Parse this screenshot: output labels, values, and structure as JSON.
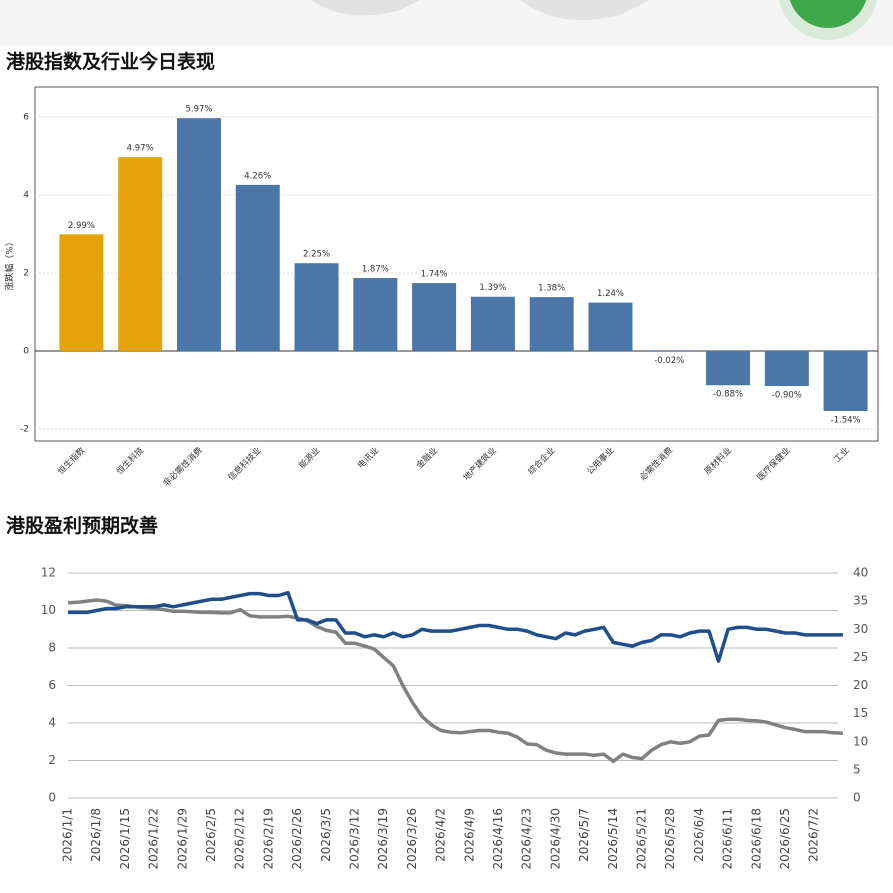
{
  "chart_data": [
    {
      "type": "bar",
      "title": "港股指数及行业今日表现",
      "ylabel": "涨跌幅（%）",
      "categories": [
        "恒生指数",
        "恒生科技",
        "非必需性消费",
        "信息科技业",
        "能源业",
        "电讯业",
        "金融业",
        "地产建筑业",
        "综合企业",
        "公用事业",
        "必需性消费",
        "原材料业",
        "医疗保健业",
        "工业"
      ],
      "values": [
        2.99,
        4.97,
        5.97,
        4.26,
        2.25,
        1.87,
        1.74,
        1.39,
        1.38,
        1.24,
        -0.02,
        -0.88,
        -0.9,
        -1.54
      ],
      "value_labels": [
        "2.99%",
        "4.97%",
        "5.97%",
        "4.26%",
        "2.25%",
        "1.87%",
        "1.74%",
        "1.39%",
        "1.38%",
        "1.24%",
        "-0.02%",
        "-0.88%",
        "-0.90%",
        "-1.54%"
      ],
      "colors": [
        "#e6a20a",
        "#e6a20a",
        "#4a76a8",
        "#4a76a8",
        "#4a76a8",
        "#4a76a8",
        "#4a76a8",
        "#4a76a8",
        "#4a76a8",
        "#4a76a8",
        "#4a76a8",
        "#4a76a8",
        "#4a76a8",
        "#4a76a8"
      ],
      "ylim": [
        -2.31,
        6.77
      ],
      "yticks": [
        -2,
        0,
        2,
        4,
        6
      ],
      "grid": true
    },
    {
      "type": "line",
      "title": "港股盈利预期改善",
      "categories": [
        "2026/1/1",
        null,
        null,
        "2026/1/8",
        null,
        null,
        "2026/1/15",
        null,
        null,
        "2026/1/22",
        null,
        null,
        "2026/1/29",
        null,
        null,
        "2026/2/5",
        null,
        null,
        "2026/2/12",
        null,
        null,
        "2026/2/19",
        null,
        null,
        "2026/2/26",
        null,
        null,
        "2026/3/5",
        null,
        null,
        "2026/3/12",
        null,
        null,
        "2026/3/19",
        null,
        null,
        "2026/3/26",
        null,
        null,
        "2026/4/2",
        null,
        null,
        "2026/4/9",
        null,
        null,
        "2026/4/16",
        null,
        null,
        "2026/4/23",
        null,
        null,
        "2026/4/30",
        null,
        null,
        "2026/5/7",
        null,
        null,
        "2026/5/14",
        null,
        null,
        "2026/5/21",
        null,
        null,
        "2026/5/28",
        null,
        null,
        "2026/6/4",
        null,
        null,
        "2026/6/11",
        null,
        null,
        "2026/6/18",
        null,
        null,
        "2026/6/25",
        null,
        null,
        "2026/7/2",
        null,
        null,
        null
      ],
      "series": [
        {
          "color": "#1f4e8c",
          "axis": "y",
          "values": [
            9.9,
            9.9,
            9.9,
            10.0,
            10.1,
            10.1,
            10.2,
            10.2,
            10.2,
            10.2,
            10.3,
            10.2,
            10.3,
            10.4,
            10.5,
            10.6,
            10.6,
            10.7,
            10.8,
            10.9,
            10.9,
            10.8,
            10.8,
            10.95,
            9.5,
            9.5,
            9.3,
            9.5,
            9.5,
            8.8,
            8.8,
            8.6,
            8.7,
            8.6,
            8.8,
            8.6,
            8.7,
            9.0,
            8.9,
            8.9,
            8.9,
            9.0,
            9.1,
            9.2,
            9.2,
            9.1,
            9.0,
            9.0,
            8.9,
            8.7,
            8.6,
            8.5,
            8.8,
            8.7,
            8.9,
            9.0,
            9.1,
            8.3,
            8.2,
            8.1,
            8.3,
            8.4,
            8.7,
            8.7,
            8.6,
            8.8,
            8.9,
            8.9,
            7.3,
            9.0,
            9.1,
            9.1,
            9.0,
            9.0,
            8.9,
            8.8,
            8.8,
            8.7,
            8.7,
            8.7,
            8.7,
            8.7
          ]
        },
        {
          "color": "#808080",
          "axis": "y2",
          "values": [
            34.7,
            34.8,
            35.0,
            35.2,
            35.0,
            34.3,
            34.2,
            34.0,
            33.8,
            33.7,
            33.5,
            33.2,
            33.2,
            33.1,
            33.0,
            33.0,
            32.9,
            32.9,
            33.5,
            32.4,
            32.2,
            32.2,
            32.2,
            32.3,
            32.0,
            31.5,
            30.5,
            29.8,
            29.5,
            27.5,
            27.5,
            27.0,
            26.5,
            25.0,
            23.5,
            20.0,
            17.0,
            14.5,
            13.0,
            12.0,
            11.7,
            11.6,
            11.8,
            12.0,
            12.0,
            11.7,
            11.5,
            10.8,
            9.6,
            9.5,
            8.5,
            8.0,
            7.8,
            7.8,
            7.8,
            7.6,
            7.8,
            6.5,
            7.8,
            7.2,
            7.0,
            8.5,
            9.5,
            10.0,
            9.7,
            10.0,
            11.0,
            11.2,
            13.8,
            14.0,
            14.0,
            13.8,
            13.7,
            13.5,
            13.0,
            12.5,
            12.2,
            11.8,
            11.8,
            11.8,
            11.6,
            11.5
          ]
        }
      ],
      "ylim": [
        0,
        12
      ],
      "yticks": [
        0,
        2,
        4,
        6,
        8,
        10,
        12
      ],
      "y2lim": [
        0,
        40
      ],
      "y2ticks": [
        0,
        5,
        10,
        15,
        20,
        25,
        30,
        35,
        40
      ],
      "grid": true
    }
  ]
}
